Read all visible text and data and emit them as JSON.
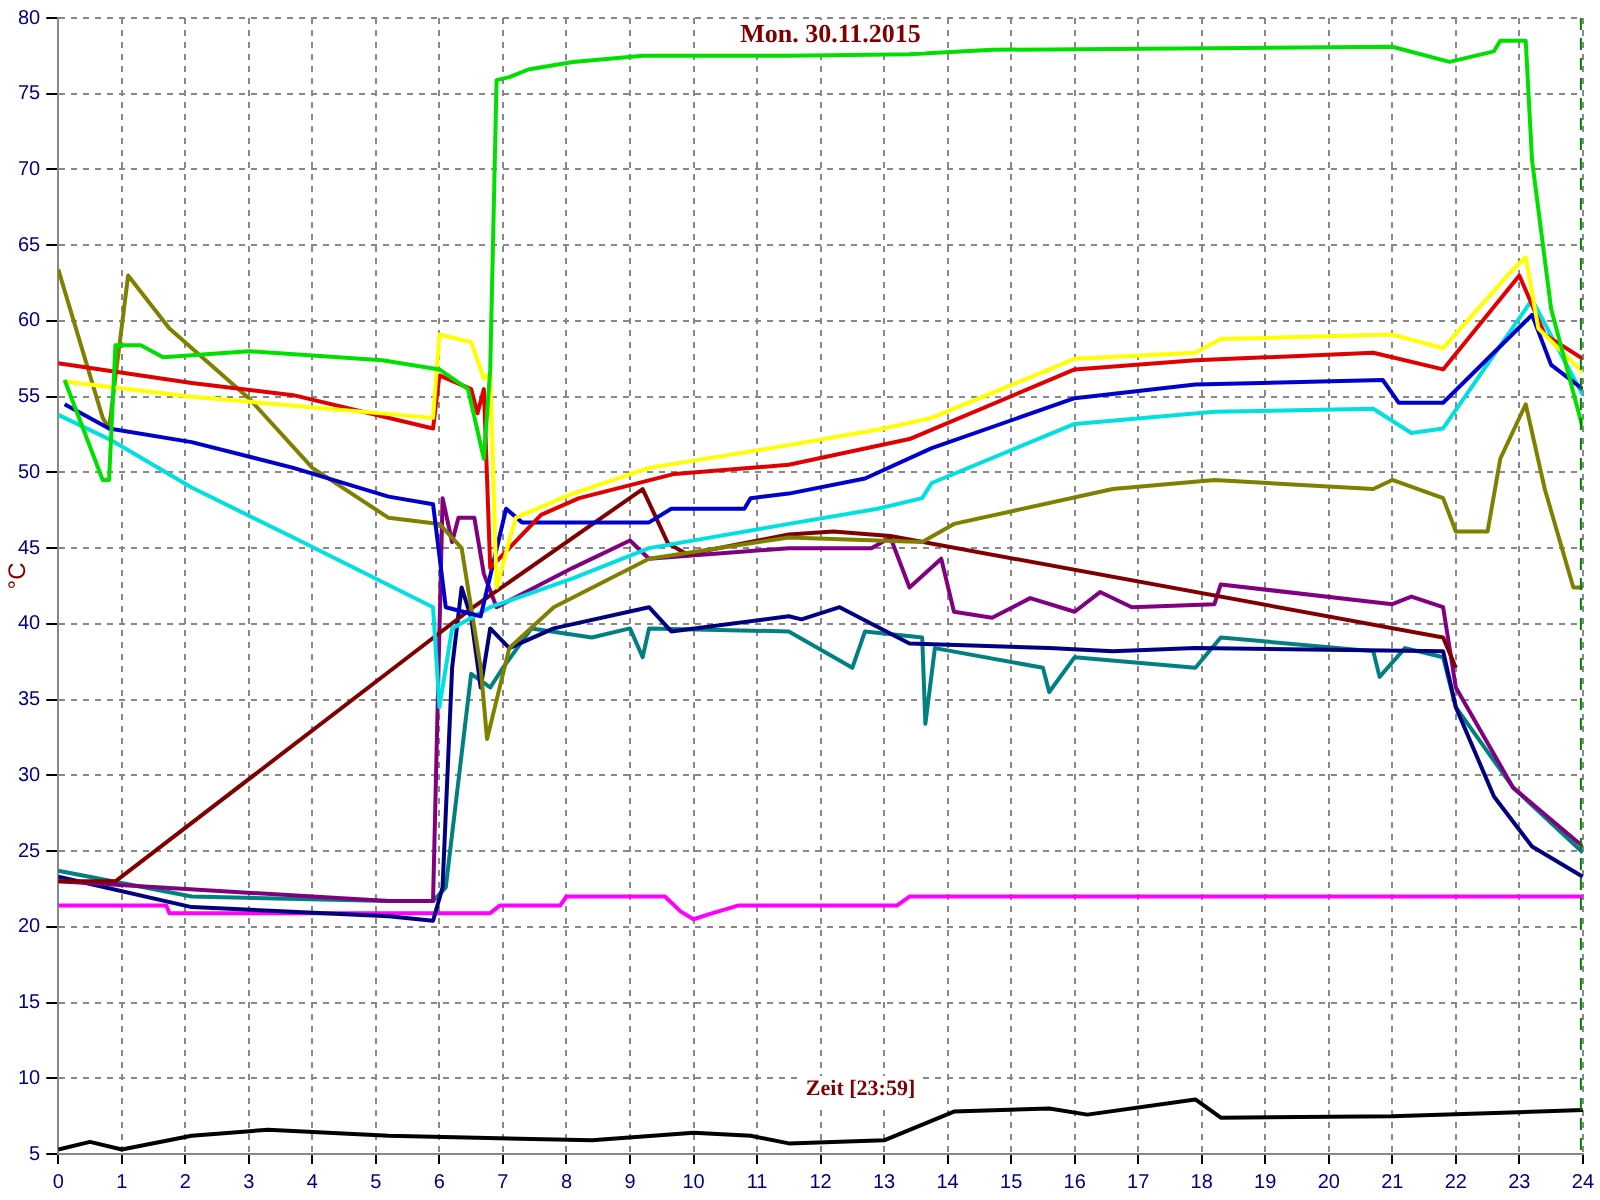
{
  "chart_data": {
    "type": "line",
    "title": "Mon. 30.11.2015",
    "xlabel": "Zeit [23:59]",
    "ylabel": "°C",
    "xlim": [
      0,
      24
    ],
    "ylim": [
      5,
      80
    ],
    "xticks": [
      0,
      1,
      2,
      3,
      4,
      5,
      6,
      7,
      8,
      9,
      10,
      11,
      12,
      13,
      14,
      15,
      16,
      17,
      18,
      19,
      20,
      21,
      22,
      23,
      24
    ],
    "yticks": [
      5,
      10,
      15,
      20,
      25,
      30,
      35,
      40,
      45,
      50,
      55,
      60,
      65,
      70,
      75,
      80
    ],
    "grid": true,
    "legend": false,
    "marker": "none",
    "line_style": "solid",
    "ref_lines": [
      {
        "axis": "x",
        "value": 24,
        "color": "#008000",
        "line_style": "dashed"
      }
    ],
    "series": [
      {
        "color": "#00e000",
        "x": [
          0.1,
          0.7,
          0.8,
          0.9,
          1.3,
          1.65,
          3.0,
          5.1,
          6.0,
          6.45,
          6.7,
          6.8,
          6.9,
          7.1,
          7.4,
          8.1,
          9.2,
          11.5,
          13.4,
          14.7,
          21,
          21.9,
          22.6,
          22.7,
          23.1,
          23.2,
          23.5,
          24
        ],
        "values": [
          56.1,
          49.5,
          49.5,
          58.4,
          58.4,
          57.6,
          58,
          57.4,
          56.8,
          55.5,
          50.9,
          56.8,
          75.9,
          76.1,
          76.6,
          77.1,
          77.5,
          77.5,
          77.6,
          77.9,
          78.1,
          77.1,
          77.8,
          78.5,
          78.5,
          70.6,
          60.8,
          52.9
        ]
      },
      {
        "color": "#ffff00",
        "x": [
          0.1,
          2.1,
          5.9,
          6.0,
          6.5,
          6.7,
          6.8,
          6.9,
          7.2,
          8.1,
          9.3,
          11.5,
          13,
          13.75,
          16,
          17.9,
          18.3,
          21,
          21.8,
          22.9,
          23.1,
          23.3,
          24
        ],
        "values": [
          56,
          55,
          53.6,
          59.1,
          58.6,
          56.2,
          56.5,
          42.4,
          47,
          48.6,
          50.3,
          51.8,
          52.9,
          53.6,
          57.5,
          57.9,
          58.8,
          59.1,
          58.2,
          63.4,
          64.2,
          59.5,
          56.6
        ]
      },
      {
        "color": "#e00000",
        "x": [
          0,
          2.1,
          3.7,
          5.9,
          6.0,
          6.5,
          6.6,
          6.7,
          6.8,
          7.1,
          7.6,
          8.2,
          9.7,
          11.5,
          13.4,
          16,
          17.9,
          20.7,
          21.8,
          23,
          23.4,
          24
        ],
        "values": [
          57.2,
          55.9,
          55.1,
          52.9,
          56.4,
          55.5,
          53.9,
          55.5,
          43.7,
          45,
          47.2,
          48.3,
          49.9,
          50.5,
          52.2,
          56.8,
          57.4,
          57.9,
          56.8,
          63,
          59.1,
          57.5
        ]
      },
      {
        "color": "#0000cc",
        "x": [
          0.1,
          0.8,
          2.1,
          3.7,
          5.2,
          5.9,
          6.1,
          6.65,
          7.05,
          7.3,
          9.3,
          9.65,
          10.8,
          10.9,
          11.5,
          12.7,
          13.75,
          16,
          17.9,
          20.85,
          21.1,
          21.8,
          23.2,
          23.5,
          24
        ],
        "values": [
          54.5,
          52.9,
          52,
          50.3,
          48.4,
          47.9,
          41.1,
          40.5,
          47.6,
          46.7,
          46.7,
          47.6,
          47.6,
          48.3,
          48.6,
          49.6,
          51.6,
          54.9,
          55.8,
          56.1,
          54.6,
          54.6,
          60.4,
          57.1,
          55.5
        ]
      },
      {
        "color": "#00e0e0",
        "x": [
          0,
          0.8,
          2.1,
          3.7,
          5.9,
          6.0,
          6.2,
          6.8,
          8.1,
          9.3,
          11.5,
          12.9,
          13.6,
          13.75,
          16,
          18.2,
          20.7,
          21.3,
          21.8,
          23.2,
          24
        ],
        "values": [
          53.8,
          52.2,
          49,
          45.7,
          41.1,
          34.5,
          39.7,
          41.1,
          43,
          45,
          46.6,
          47.6,
          48.3,
          49.3,
          53.2,
          54,
          54.2,
          52.6,
          52.9,
          61.4,
          55.1
        ]
      },
      {
        "color": "#808000",
        "x": [
          0,
          0.7,
          0.8,
          1.1,
          1.75,
          3.0,
          4.0,
          5.2,
          6.0,
          6.35,
          6.65,
          6.75,
          7.1,
          7.8,
          9.3,
          11.5,
          13.6,
          14.1,
          16.6,
          18.2,
          20.7,
          21,
          21.8,
          22,
          22.5,
          22.7,
          23.1,
          23.4,
          23.85,
          24
        ],
        "values": [
          63.4,
          53.6,
          52.9,
          63,
          59.5,
          54.9,
          50.3,
          47,
          46.6,
          45,
          37.1,
          32.4,
          38.4,
          41.1,
          44.3,
          45.7,
          45.4,
          46.6,
          48.9,
          49.5,
          48.9,
          49.5,
          48.3,
          46.1,
          46.1,
          50.9,
          54.5,
          48.9,
          42.4,
          42.4
        ]
      },
      {
        "color": "#800000",
        "x": [
          0,
          0.9,
          6.5,
          9.2,
          9.6,
          9.9,
          11.5,
          12.2,
          13.1,
          21.8,
          22
        ],
        "values": [
          23,
          23,
          41,
          48.9,
          45.3,
          44.6,
          45.9,
          46.1,
          45.8,
          39.1,
          37.1
        ]
      },
      {
        "color": "#800080",
        "x": [
          0,
          5.2,
          5.9,
          6.05,
          6.2,
          6.3,
          6.55,
          6.7,
          6.9,
          8.1,
          9,
          9.3,
          11.5,
          12.8,
          13.1,
          13.4,
          13.9,
          14.1,
          14.7,
          15.3,
          16,
          16.4,
          16.9,
          18.2,
          18.3,
          21,
          21.3,
          21.8,
          22,
          22.9,
          24
        ],
        "values": [
          23,
          21.7,
          21.7,
          48.3,
          45.4,
          47,
          47,
          43.3,
          41.1,
          43.7,
          45.5,
          44.3,
          45,
          45,
          45.7,
          42.4,
          44.3,
          40.8,
          40.4,
          41.7,
          40.8,
          42.1,
          41.1,
          41.3,
          42.6,
          41.3,
          41.8,
          41.1,
          35.8,
          29.2,
          25.3
        ]
      },
      {
        "color": "#000080",
        "x": [
          0,
          2.1,
          5.2,
          5.9,
          6.05,
          6.2,
          6.35,
          6.5,
          6.65,
          6.8,
          7.1,
          7.8,
          9.3,
          9.65,
          11.5,
          11.7,
          12.3,
          13.4,
          15.6,
          16.6,
          17.9,
          21.8,
          22,
          22.6,
          23.2,
          24
        ],
        "values": [
          23.3,
          21.3,
          20.7,
          20.4,
          22.6,
          37.1,
          42.4,
          40.4,
          35.8,
          39.7,
          38.4,
          39.7,
          41.1,
          39.5,
          40.5,
          40.3,
          41.1,
          38.7,
          38.4,
          38.2,
          38.4,
          38.2,
          34.5,
          28.6,
          25.3,
          23.3
        ]
      },
      {
        "color": "#008080",
        "x": [
          0,
          2.1,
          5.2,
          5.9,
          6.1,
          6.5,
          6.8,
          7.0,
          7.45,
          8.4,
          9.0,
          9.2,
          9.3,
          11.5,
          12.5,
          12.7,
          13.6,
          13.65,
          13.8,
          15.5,
          15.6,
          16,
          17.9,
          18.3,
          20.7,
          20.8,
          21.2,
          21.8,
          22,
          22.9,
          24
        ],
        "values": [
          23.7,
          22,
          21.7,
          21.7,
          22.6,
          36.7,
          35.8,
          37.1,
          39.7,
          39.1,
          39.7,
          37.8,
          39.7,
          39.5,
          37.1,
          39.5,
          39.1,
          33.4,
          38.4,
          37.1,
          35.5,
          37.8,
          37.1,
          39.1,
          38.2,
          36.5,
          38.4,
          37.8,
          34.5,
          29.2,
          24.9
        ]
      },
      {
        "color": "#ff00ff",
        "x": [
          0,
          1.7,
          1.75,
          6.8,
          6.95,
          7.9,
          8.0,
          9.55,
          9.8,
          10,
          10.3,
          10.7,
          13.2,
          13.4,
          24
        ],
        "values": [
          21.4,
          21.4,
          20.9,
          20.9,
          21.4,
          21.4,
          22,
          22,
          21,
          20.5,
          20.9,
          21.4,
          21.4,
          22,
          22
        ]
      },
      {
        "color": "#000000",
        "x": [
          0,
          0.5,
          1,
          2.1,
          3.3,
          5.2,
          8.4,
          10,
          10.9,
          11.5,
          13,
          14.1,
          15.6,
          16.2,
          17.9,
          18.3,
          21,
          24
        ],
        "values": [
          5.3,
          5.8,
          5.3,
          6.2,
          6.6,
          6.2,
          5.9,
          6.4,
          6.2,
          5.7,
          5.9,
          7.8,
          8.0,
          7.6,
          8.6,
          7.4,
          7.5,
          7.9
        ]
      }
    ]
  }
}
